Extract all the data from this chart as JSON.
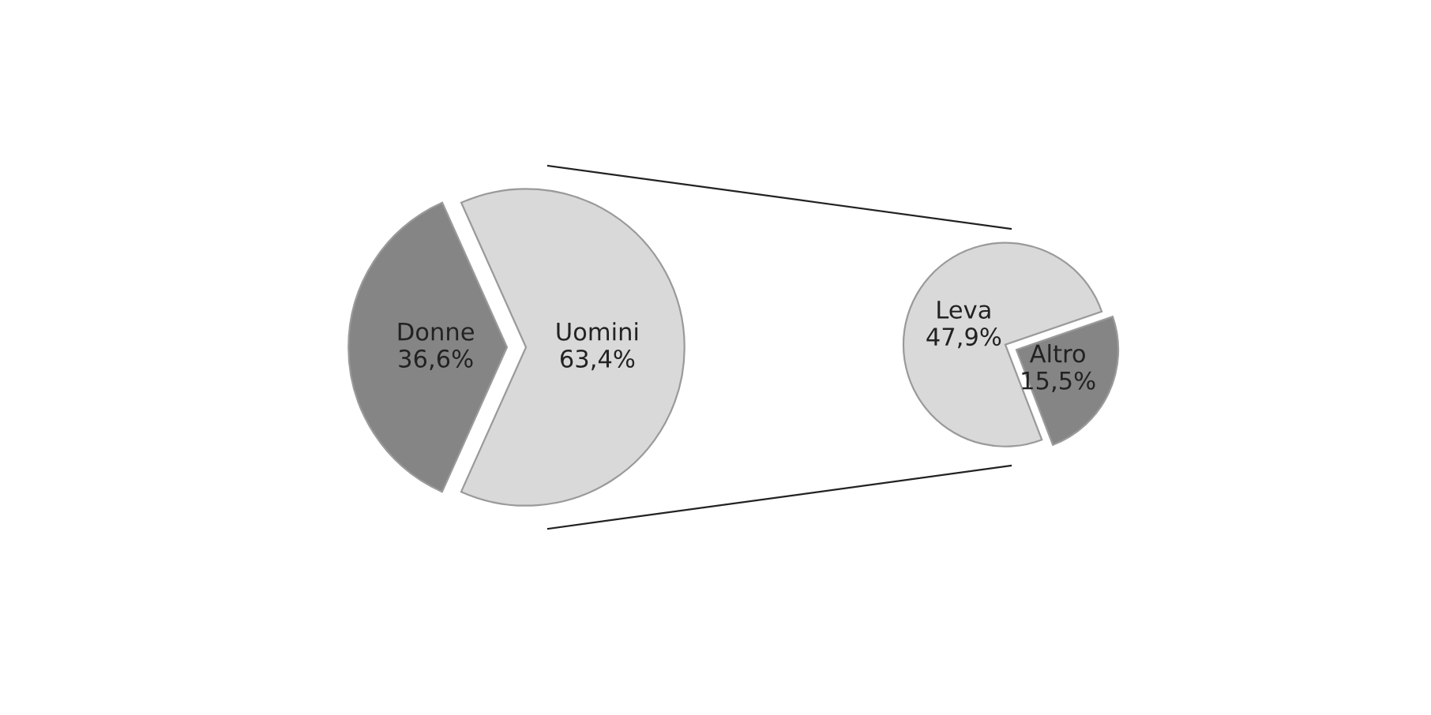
{
  "chart_data": [
    {
      "type": "pie",
      "categories": [
        "Donne",
        "Uomini"
      ],
      "values": [
        36.6,
        63.4
      ],
      "colors": [
        "#858585",
        "#d9d9d9"
      ],
      "value_labels": [
        "36,6%",
        "63,4%"
      ]
    },
    {
      "type": "pie",
      "categories": [
        "Leva",
        "Altro"
      ],
      "values": [
        47.9,
        15.5
      ],
      "colors": [
        "#d9d9d9",
        "#858585"
      ],
      "value_labels": [
        "47,9%",
        "15,5%"
      ]
    }
  ]
}
